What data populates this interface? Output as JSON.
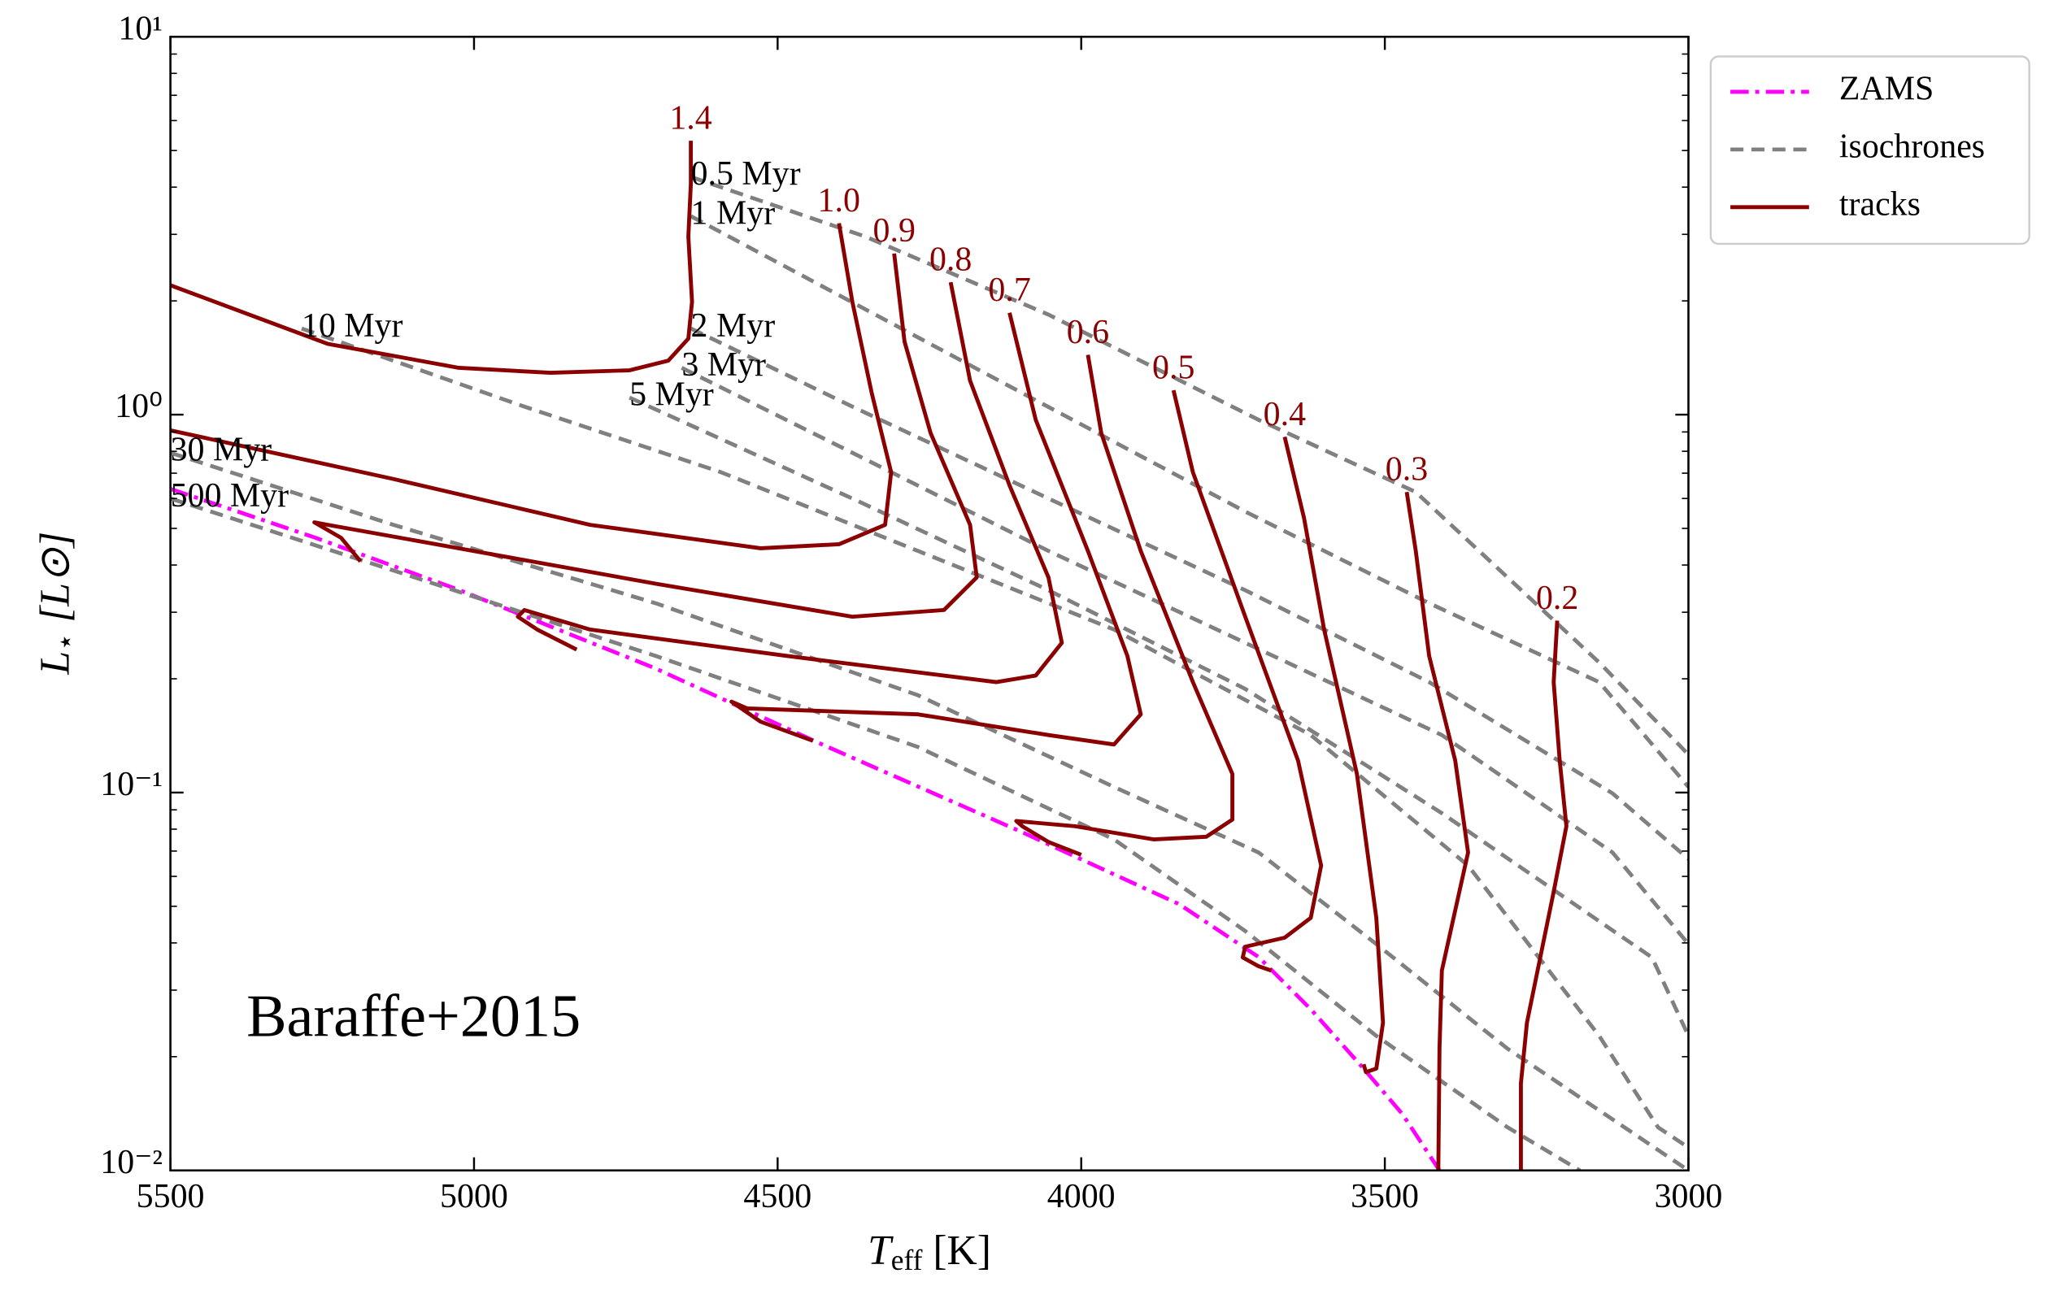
{
  "chart_data": {
    "type": "line",
    "xlabel": {
      "symbol": "T",
      "subscript": "eff",
      "unit": "[K]"
    },
    "ylabel": {
      "symbol": "L",
      "subscript": "⋆",
      "unit": "[L⊙]"
    },
    "annotation": "Baraffe+2015",
    "xlim": [
      5500,
      3000
    ],
    "ylim": [
      0.01,
      10
    ],
    "log_y": true,
    "xticks": [
      5500,
      5000,
      4500,
      4000,
      3500,
      3000
    ],
    "yticks": [
      {
        "value": 0.01,
        "label": "10⁻²"
      },
      {
        "value": 0.1,
        "label": "10⁻¹"
      },
      {
        "value": 1,
        "label": "10⁰"
      },
      {
        "value": 10,
        "label": "10¹"
      }
    ],
    "yminorticks": [
      0.02,
      0.03,
      0.04,
      0.05,
      0.06,
      0.07,
      0.08,
      0.09,
      0.2,
      0.3,
      0.4,
      0.5,
      0.6,
      0.7,
      0.8,
      0.9,
      2,
      3,
      4,
      5,
      6,
      7,
      8,
      9
    ],
    "legend": "outside upper right",
    "series": [
      {
        "name": "ZAMS",
        "color": "#ff00ff",
        "style": "dashdot",
        "lines": [
          {
            "x": [
              5500,
              5262,
              5025,
              4701,
              4431,
              4097,
              3838,
              3708,
              3622,
              3535,
              3471,
              3410
            ],
            "y": [
              0.636,
              0.473,
              0.344,
              0.213,
              0.135,
              0.0785,
              0.0506,
              0.0367,
              0.0267,
              0.0186,
              0.0141,
              0.01
            ]
          }
        ]
      },
      {
        "name": "isochrones",
        "color": "#808080",
        "style": "dashed",
        "lines": [
          {
            "label": "0.5 Myr",
            "x": [
              4643,
              4356,
              4054,
              3708,
              3449,
              3298,
              3147,
              3000
            ],
            "y": [
              4.26,
              2.96,
              1.84,
              0.969,
              0.624,
              0.371,
              0.221,
              0.126
            ]
          },
          {
            "label": "1 Myr",
            "x": [
              4643,
              4399,
              4097,
              3730,
              3427,
              3147,
              3000
            ],
            "y": [
              3.35,
              2.07,
              1.14,
              0.554,
              0.317,
              0.196,
              0.1035
            ]
          },
          {
            "label": "2 Myr",
            "x": [
              4643,
              4377,
              4054,
              3730,
              3427,
              3125,
              3000
            ],
            "y": [
              1.69,
              1.05,
              0.6,
              0.343,
              0.196,
              0.0995,
              0.0667
            ]
          },
          {
            "label": "3 Myr",
            "x": [
              4658,
              4377,
              4054,
              3730,
              3406,
              3125,
              3000
            ],
            "y": [
              1.33,
              0.793,
              0.436,
              0.249,
              0.142,
              0.0694,
              0.0397
            ]
          },
          {
            "label": "5 Myr",
            "x": [
              4744,
              4377,
              4054,
              3730,
              3406,
              3060,
              3000
            ],
            "y": [
              1.11,
              0.6,
              0.343,
              0.188,
              0.0882,
              0.0366,
              0.0227
            ]
          },
          {
            "label": "10 Myr",
            "x": [
              5284,
              4917,
              4593,
              4269,
              3946,
              3622,
              3363,
              3147,
              3050,
              3000
            ],
            "y": [
              1.69,
              1.05,
              0.704,
              0.436,
              0.27,
              0.142,
              0.0641,
              0.0227,
              0.013,
              0.0115
            ]
          },
          {
            "label": "30 Myr",
            "x": [
              5500,
              5133,
              4701,
              4269,
              3946,
              3708,
              3514,
              3298,
              3000
            ],
            "y": [
              0.793,
              0.511,
              0.317,
              0.181,
              0.1035,
              0.0694,
              0.0397,
              0.021,
              0.01
            ]
          },
          {
            "label": "500 Myr",
            "x": [
              5500,
              5133,
              4701,
              4269,
              3946,
              3730,
              3514,
              3298,
              3179
            ],
            "y": [
              0.6,
              0.387,
              0.23,
              0.132,
              0.0752,
              0.043,
              0.0227,
              0.013,
              0.01
            ]
          }
        ]
      },
      {
        "name": "tracks",
        "color": "#8b0000",
        "style": "solid",
        "lines": [
          {
            "label": "1.4",
            "x": [
              4643,
              4643,
              4647,
              4641,
              4647,
              4680,
              4744,
              4874,
              5025,
              5241,
              5500
            ],
            "y": [
              5.31,
              4.08,
              2.96,
              1.99,
              1.59,
              1.39,
              1.31,
              1.29,
              1.33,
              1.54,
              2.2
            ]
          },
          {
            "label": "1.0",
            "x": [
              4399,
              4377,
              4345,
              4313,
              4323,
              4399,
              4528,
              4809,
              5133,
              5500
            ],
            "y": [
              3.21,
              1.99,
              1.14,
              0.704,
              0.511,
              0.454,
              0.443,
              0.511,
              0.676,
              0.909
            ]
          },
          {
            "label": "0.9",
            "x": [
              4308,
              4291,
              4248,
              4183,
              4172,
              4226,
              4377,
              4701,
              5025,
              5241,
              5263,
              5219,
              5187
            ],
            "y": [
              2.67,
              1.56,
              0.894,
              0.511,
              0.371,
              0.304,
              0.292,
              0.357,
              0.443,
              0.511,
              0.519,
              0.472,
              0.409
            ]
          },
          {
            "label": "0.8",
            "x": [
              4215,
              4183,
              4118,
              4054,
              4032,
              4075,
              4140,
              4485,
              4809,
              4917,
              4928,
              4896,
              4831
            ],
            "y": [
              2.24,
              1.23,
              0.65,
              0.371,
              0.249,
              0.204,
              0.196,
              0.23,
              0.27,
              0.304,
              0.292,
              0.27,
              0.239
            ]
          },
          {
            "label": "0.7",
            "x": [
              4118,
              4075,
              3989,
              3924,
              3902,
              3946,
              4054,
              4269,
              4550,
              4576,
              4528,
              4442
            ],
            "y": [
              1.86,
              0.969,
              0.436,
              0.23,
              0.161,
              0.134,
              0.142,
              0.161,
              0.167,
              0.174,
              0.154,
              0.137
            ]
          },
          {
            "label": "0.6",
            "x": [
              3989,
              3967,
              3902,
              3816,
              3751,
              3751,
              3794,
              3881,
              4010,
              4107,
              4097,
              4054,
              4000
            ],
            "y": [
              1.44,
              0.894,
              0.436,
              0.196,
              0.112,
              0.0848,
              0.0764,
              0.0752,
              0.0814,
              0.0841,
              0.0814,
              0.074,
              0.0684
            ]
          },
          {
            "label": "0.5",
            "x": [
              3848,
              3816,
              3730,
              3643,
              3605,
              3622,
              3665,
              3730,
              3734,
              3708,
              3687
            ],
            "y": [
              1.16,
              0.704,
              0.292,
              0.1215,
              0.0641,
              0.0466,
              0.0413,
              0.0391,
              0.0366,
              0.0347,
              0.0338
            ]
          },
          {
            "label": "0.4",
            "x": [
              3665,
              3633,
              3600,
              3546,
              3514,
              3503,
              3514,
              3531,
              3535
            ],
            "y": [
              0.873,
              0.532,
              0.27,
              0.112,
              0.0466,
              0.0246,
              0.0186,
              0.0182,
              0.0191
            ]
          },
          {
            "label": "0.3",
            "x": [
              3464,
              3449,
              3427,
              3384,
              3363,
              3406,
              3410,
              3412
            ],
            "y": [
              0.624,
              0.436,
              0.23,
              0.1215,
              0.0694,
              0.0338,
              0.021,
              0.01
            ]
          },
          {
            "label": "0.2",
            "x": [
              3216,
              3222,
              3212,
              3201,
              3222,
              3266,
              3276,
              3276
            ],
            "y": [
              0.285,
              0.196,
              0.1215,
              0.0815,
              0.0546,
              0.0246,
              0.017,
              0.01
            ]
          }
        ]
      }
    ]
  }
}
